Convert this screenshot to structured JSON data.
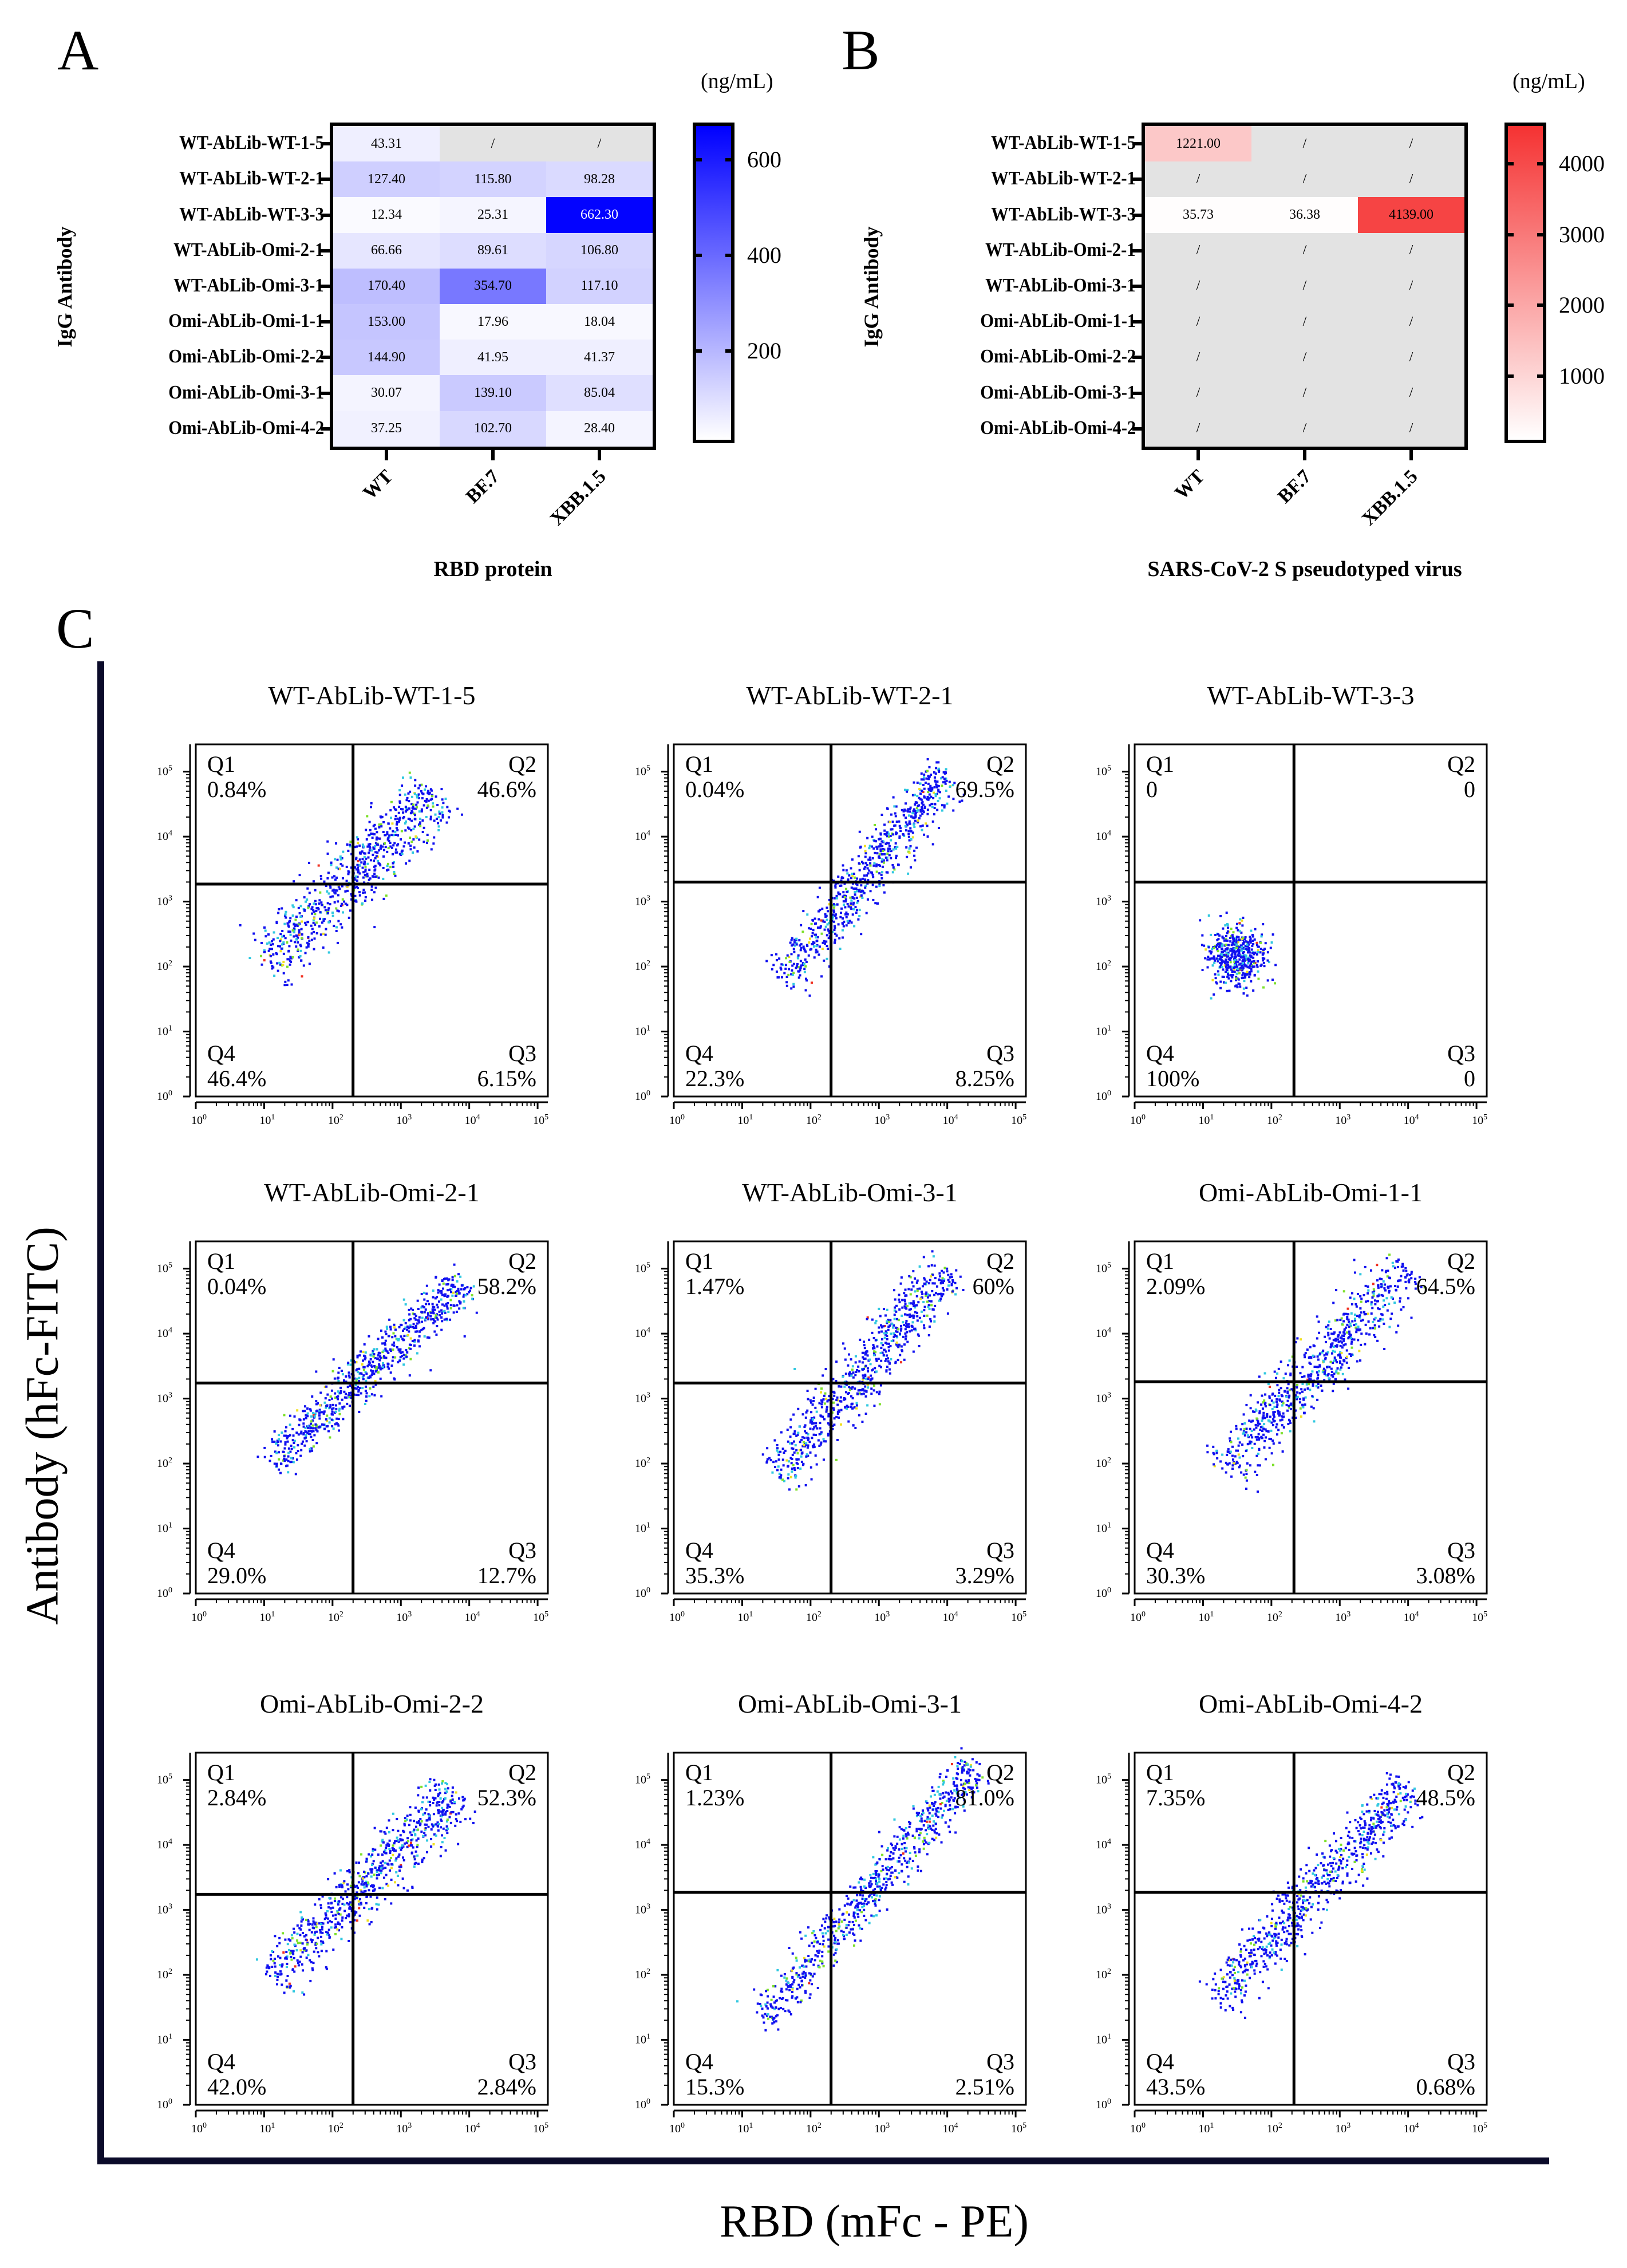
{
  "panel_labels": {
    "a": "A",
    "b": "B",
    "c": "C"
  },
  "chart_data": [
    {
      "type": "heatmap",
      "panel": "A",
      "title": "",
      "xlabel": "RBD protein",
      "ylabel": "IgG Antibody",
      "colorbar_unit": "(ng/mL)",
      "colorbar_ticks": [
        200,
        400,
        600
      ],
      "colorbar_range": [
        0,
        670
      ],
      "color_low": "#ffffff",
      "color_high": "#0000ff",
      "null_color": "#e3e3e3",
      "null_label": "/",
      "columns": [
        "WT",
        "BF.7",
        "XBB.1.5"
      ],
      "rows": [
        "WT-AbLib-WT-1-5",
        "WT-AbLib-WT-2-1",
        "WT-AbLib-WT-3-3",
        "WT-AbLib-Omi-2-1",
        "WT-AbLib-Omi-3-1",
        "Omi-AbLib-Omi-1-1",
        "Omi-AbLib-Omi-2-2",
        "Omi-AbLib-Omi-3-1",
        "Omi-AbLib-Omi-4-2"
      ],
      "values": [
        [
          "43.31",
          null,
          null
        ],
        [
          "127.40",
          "115.80",
          "98.28"
        ],
        [
          "12.34",
          "25.31",
          "662.30"
        ],
        [
          "66.66",
          "89.61",
          "106.80"
        ],
        [
          "170.40",
          "354.70",
          "117.10"
        ],
        [
          "153.00",
          "17.96",
          "18.04"
        ],
        [
          "144.90",
          "41.95",
          "41.37"
        ],
        [
          "30.07",
          "139.10",
          "85.04"
        ],
        [
          "37.25",
          "102.70",
          "28.40"
        ]
      ]
    },
    {
      "type": "heatmap",
      "panel": "B",
      "title": "",
      "xlabel": "SARS-CoV-2 S pseudotyped virus",
      "ylabel": "IgG Antibody",
      "colorbar_unit": "(ng/mL)",
      "colorbar_ticks": [
        1000,
        2000,
        3000,
        4000
      ],
      "colorbar_range": [
        0,
        4535
      ],
      "color_low": "#ffffff",
      "color_high": "#f53232",
      "null_color": "#e3e3e3",
      "null_label": "/",
      "columns": [
        "WT",
        "BF.7",
        "XBB.1.5"
      ],
      "rows": [
        "WT-AbLib-WT-1-5",
        "WT-AbLib-WT-2-1",
        "WT-AbLib-WT-3-3",
        "WT-AbLib-Omi-2-1",
        "WT-AbLib-Omi-3-1",
        "Omi-AbLib-Omi-1-1",
        "Omi-AbLib-Omi-2-2",
        "Omi-AbLib-Omi-3-1",
        "Omi-AbLib-Omi-4-2"
      ],
      "values": [
        [
          "1221.00",
          null,
          null
        ],
        [
          null,
          null,
          null
        ],
        [
          "35.73",
          "36.38",
          "4139.00"
        ],
        [
          null,
          null,
          null
        ],
        [
          null,
          null,
          null
        ],
        [
          null,
          null,
          null
        ],
        [
          null,
          null,
          null
        ],
        [
          null,
          null,
          null
        ],
        [
          null,
          null,
          null
        ]
      ]
    },
    {
      "type": "scatter",
      "panel": "C",
      "xlabel": "RBD (mFc - PE)",
      "ylabel": "Antibody (hFc-FITC)",
      "axis_scale": "log10",
      "tick_base": "10",
      "tick_exponents": [
        "0",
        "1",
        "2",
        "3",
        "4",
        "5"
      ],
      "xlim_log10": [
        0,
        5.15
      ],
      "ylim_log10": [
        0,
        5.42
      ],
      "quadrant_names": [
        "Q1",
        "Q2",
        "Q3",
        "Q4"
      ],
      "plots": [
        {
          "title": "WT-AbLib-WT-1-5",
          "gate_log10": [
            2.3,
            3.27
          ],
          "q1": "0.84%",
          "q2": "46.6%",
          "q3": "6.15%",
          "q4": "46.4%",
          "cluster": {
            "shape": "diagonal",
            "from": [
              1.0,
              2.0
            ],
            "to": [
              3.5,
              4.7
            ],
            "spread": 0.22
          }
        },
        {
          "title": "WT-AbLib-WT-2-1",
          "gate_log10": [
            2.3,
            3.3
          ],
          "q1": "0.04%",
          "q2": "69.5%",
          "q3": "8.25%",
          "q4": "22.3%",
          "cluster": {
            "shape": "diagonal",
            "from": [
              1.6,
              1.8
            ],
            "to": [
              4.0,
              5.0
            ],
            "spread": 0.16
          }
        },
        {
          "title": "WT-AbLib-WT-3-3",
          "gate_log10": [
            2.33,
            3.3
          ],
          "q1": "0",
          "q2": "0",
          "q3": "0",
          "q4": "100%",
          "cluster": {
            "shape": "blob",
            "from": [
              1.5,
              2.15
            ],
            "to": [
              1.5,
              2.15
            ],
            "spread": 0.25
          }
        },
        {
          "title": "WT-AbLib-Omi-2-1",
          "gate_log10": [
            2.3,
            3.24
          ],
          "q1": "0.04%",
          "q2": "58.2%",
          "q3": "12.7%",
          "q4": "29.0%",
          "cluster": {
            "shape": "diagonal",
            "from": [
              1.1,
              2.0
            ],
            "to": [
              3.9,
              4.8
            ],
            "spread": 0.15
          }
        },
        {
          "title": "WT-AbLib-Omi-3-1",
          "gate_log10": [
            2.3,
            3.24
          ],
          "q1": "1.47%",
          "q2": "60%",
          "q3": "3.29%",
          "q4": "35.3%",
          "cluster": {
            "shape": "diagonal",
            "from": [
              1.5,
              1.8
            ],
            "to": [
              4.0,
              5.0
            ],
            "spread": 0.18
          }
        },
        {
          "title": "Omi-AbLib-Omi-1-1",
          "gate_log10": [
            2.33,
            3.26
          ],
          "q1": "2.09%",
          "q2": "64.5%",
          "q3": "3.08%",
          "q4": "30.3%",
          "cluster": {
            "shape": "diagonal",
            "from": [
              1.3,
              1.9
            ],
            "to": [
              4.0,
              5.0
            ],
            "spread": 0.2
          }
        },
        {
          "title": "Omi-AbLib-Omi-2-2",
          "gate_log10": [
            2.3,
            3.24
          ],
          "q1": "2.84%",
          "q2": "52.3%",
          "q3": "2.84%",
          "q4": "42.0%",
          "cluster": {
            "shape": "diagonal",
            "from": [
              1.1,
              1.9
            ],
            "to": [
              3.8,
              4.8
            ],
            "spread": 0.18
          }
        },
        {
          "title": "Omi-AbLib-Omi-3-1",
          "gate_log10": [
            2.3,
            3.27
          ],
          "q1": "1.23%",
          "q2": "81.0%",
          "q3": "2.51%",
          "q4": "15.3%",
          "cluster": {
            "shape": "diagonal",
            "from": [
              1.3,
              1.3
            ],
            "to": [
              4.4,
              5.2
            ],
            "spread": 0.15
          }
        },
        {
          "title": "Omi-AbLib-Omi-4-2",
          "gate_log10": [
            2.33,
            3.27
          ],
          "q1": "7.35%",
          "q2": "48.5%",
          "q3": "0.68%",
          "q4": "43.5%",
          "cluster": {
            "shape": "diagonal",
            "from": [
              1.2,
              1.6
            ],
            "to": [
              4.0,
              4.9
            ],
            "spread": 0.17
          }
        }
      ]
    }
  ]
}
